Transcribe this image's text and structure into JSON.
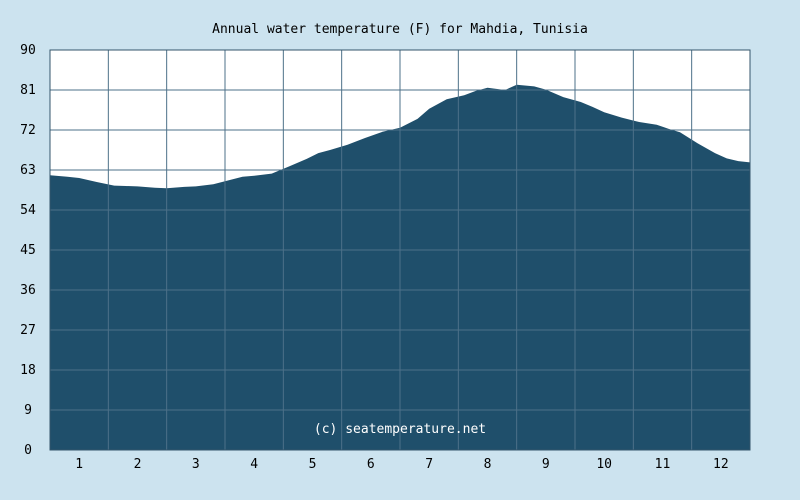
{
  "chart_data": {
    "type": "area",
    "title": "Annual water temperature (F) for Mahdia, Tunisia",
    "watermark": "(c) seatemperature.net",
    "xlabel": "",
    "ylabel": "",
    "x_ticks": [
      "1",
      "2",
      "3",
      "4",
      "5",
      "6",
      "7",
      "8",
      "9",
      "10",
      "11",
      "12"
    ],
    "y_ticks": [
      "0",
      "9",
      "18",
      "27",
      "36",
      "45",
      "54",
      "63",
      "72",
      "81",
      "90"
    ],
    "ylim": [
      0,
      90
    ],
    "xlim": [
      0.5,
      12.5
    ],
    "grid": true,
    "colors": {
      "background": "#cce3ef",
      "plot_area": "#ffffff",
      "fill": "#1f4f6b",
      "grid": "#4d7189",
      "frame": "#33556b"
    },
    "series": [
      {
        "x": [
          0.5,
          0.8,
          1.0,
          1.3,
          1.6,
          1.8,
          2.0,
          2.3,
          2.5,
          2.8,
          3.0,
          3.3,
          3.6,
          3.8,
          4.0,
          4.3,
          4.6,
          4.9,
          5.1,
          5.3,
          5.6,
          5.9,
          6.2,
          6.5,
          6.8,
          7.0,
          7.3,
          7.6,
          7.8,
          8.0,
          8.3,
          8.5,
          8.8,
          9.0,
          9.3,
          9.6,
          9.8,
          10.0,
          10.3,
          10.6,
          10.9,
          11.1,
          11.3,
          11.6,
          11.9,
          12.1,
          12.3,
          12.5
        ],
        "values": [
          61.8,
          61.5,
          61.2,
          60.3,
          59.5,
          59.4,
          59.3,
          59.0,
          58.9,
          59.2,
          59.3,
          59.8,
          60.8,
          61.5,
          61.7,
          62.2,
          63.8,
          65.5,
          66.8,
          67.5,
          68.7,
          70.2,
          71.6,
          72.5,
          74.5,
          76.8,
          78.9,
          79.8,
          80.8,
          81.5,
          81.0,
          82.2,
          81.8,
          81.1,
          79.4,
          78.3,
          77.2,
          76.0,
          74.8,
          73.8,
          73.2,
          72.3,
          71.5,
          69.0,
          66.8,
          65.6,
          65.0,
          64.7
        ]
      }
    ]
  }
}
